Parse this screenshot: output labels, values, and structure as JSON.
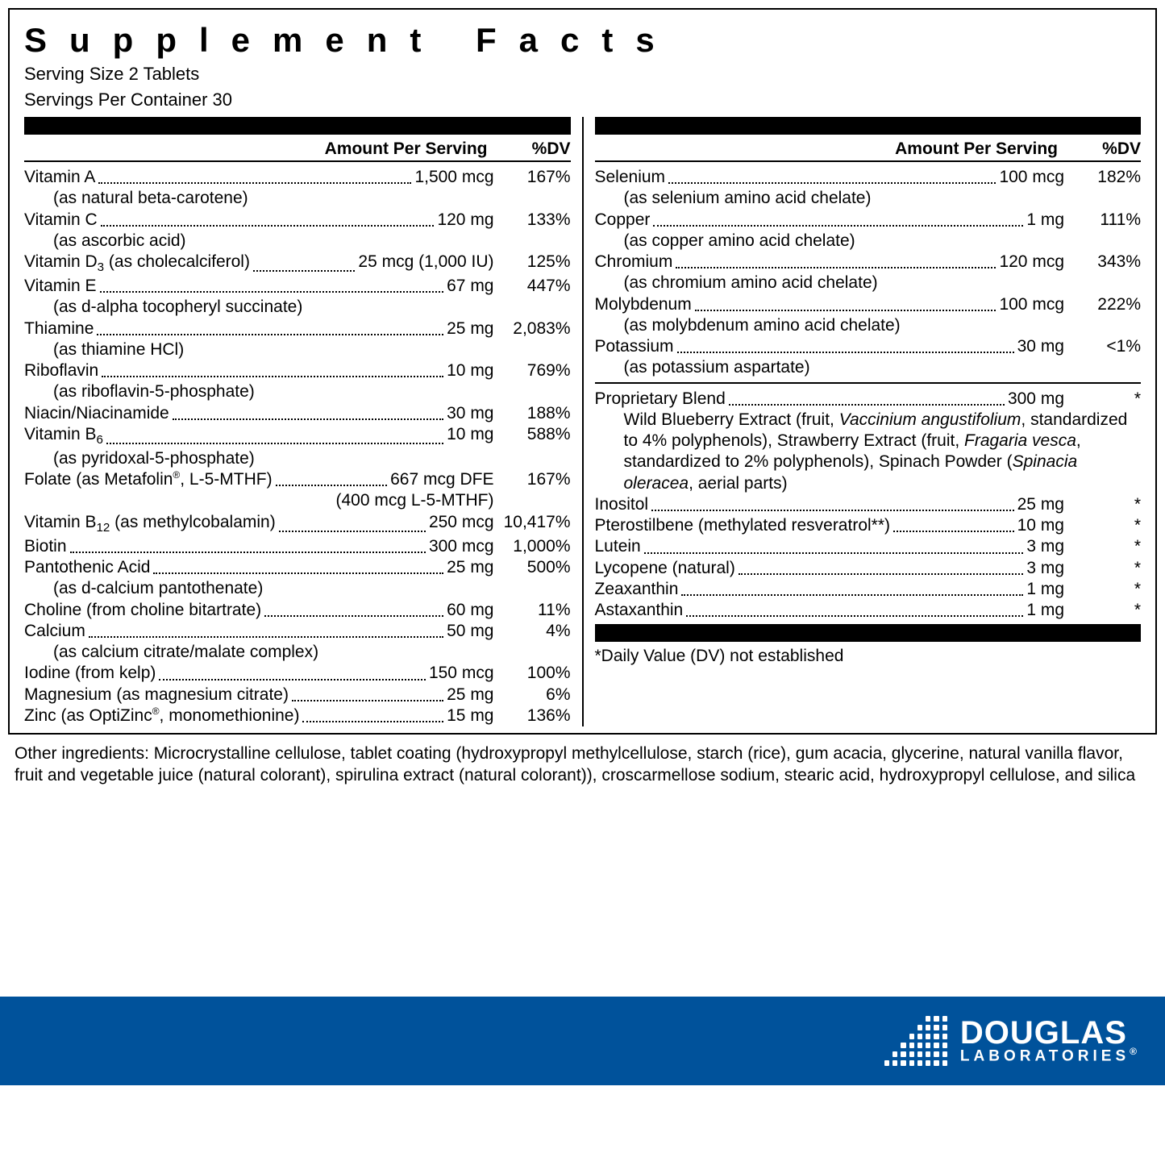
{
  "title": "Supplement Facts",
  "serving_size": "Serving Size 2 Tablets",
  "servings_per_container": "Servings Per Container 30",
  "headers": {
    "amount": "Amount Per Serving",
    "dv": "%DV"
  },
  "left": [
    {
      "name": "Vitamin A",
      "amount": "1,500 mcg",
      "dv": "167%",
      "sub": "(as natural beta-carotene)"
    },
    {
      "name": "Vitamin C",
      "amount": "120 mg",
      "dv": "133%",
      "sub": "(as ascorbic acid)"
    },
    {
      "name_html": "Vitamin D<sub class='chem'>3</sub> (as cholecalciferol)",
      "amount": "25 mcg (1,000 IU)",
      "dv": "125%"
    },
    {
      "name": "Vitamin E",
      "amount": "67 mg",
      "dv": "447%",
      "sub": "(as d-alpha tocopheryl succinate)"
    },
    {
      "name": "Thiamine",
      "amount": "25 mg",
      "dv": "2,083%",
      "sub": "(as thiamine HCl)"
    },
    {
      "name": "Riboflavin",
      "amount": "10 mg",
      "dv": "769%",
      "sub": "(as riboflavin-5-phosphate)"
    },
    {
      "name": "Niacin/Niacinamide",
      "amount": "30 mg",
      "dv": "188%"
    },
    {
      "name_html": "Vitamin B<sub class='chem'>6</sub>",
      "amount": "10 mg",
      "dv": "588%",
      "sub": "(as pyridoxal-5-phosphate)"
    },
    {
      "name_html": "Folate (as Metafolin<span class='reg'>®</span>, L-5-MTHF)",
      "amount": "667 mcg DFE",
      "dv": "167%",
      "sub_right": "(400 mcg L-5-MTHF)"
    },
    {
      "name_html": "Vitamin B<sub class='chem'>12</sub> (as methylcobalamin)",
      "amount": "250 mcg",
      "dv": "10,417%"
    },
    {
      "name": "Biotin",
      "amount": "300 mcg",
      "dv": "1,000%"
    },
    {
      "name": "Pantothenic Acid",
      "amount": "25 mg",
      "dv": "500%",
      "sub": "(as d-calcium pantothenate)"
    },
    {
      "name": "Choline (from choline bitartrate)",
      "amount": "60 mg",
      "dv": "11%"
    },
    {
      "name": "Calcium",
      "amount": "50 mg",
      "dv": "4%",
      "sub": "(as calcium citrate/malate complex)"
    },
    {
      "name": "Iodine (from kelp)",
      "amount": "150 mcg",
      "dv": "100%"
    },
    {
      "name": "Magnesium (as magnesium citrate)",
      "amount": "25 mg",
      "dv": "6%"
    },
    {
      "name_html": "Zinc (as OptiZinc<span class='reg'>®</span>, monomethionine)",
      "amount": "15 mg",
      "dv": "136%"
    }
  ],
  "right_top": [
    {
      "name": "Selenium",
      "amount": "100 mcg",
      "dv": "182%",
      "sub": "(as selenium amino acid chelate)"
    },
    {
      "name": "Copper",
      "amount": "1 mg",
      "dv": "111%",
      "sub": "(as copper amino acid chelate)"
    },
    {
      "name": "Chromium",
      "amount": "120 mcg",
      "dv": "343%",
      "sub": "(as chromium amino acid chelate)"
    },
    {
      "name": "Molybdenum",
      "amount": "100 mcg",
      "dv": "222%",
      "sub": "(as molybdenum amino acid chelate)"
    },
    {
      "name": "Potassium",
      "amount": "30 mg",
      "dv": "<1%",
      "sub": "(as potassium aspartate)"
    }
  ],
  "right_bottom": [
    {
      "name": "Proprietary Blend",
      "amount": "300 mg",
      "dv": "*",
      "blend_html": "Wild Blueberry Extract (fruit, <span class='ital'>Vaccinium angustifolium</span>, standardized to 4% polyphenols), Strawberry Extract (fruit, <span class='ital'>Fragaria vesca</span>, standardized to 2% polyphenols), Spinach Powder (<span class='ital'>Spinacia oleracea</span>, aerial parts)"
    },
    {
      "name": "Inositol",
      "amount": "25 mg",
      "dv": "*"
    },
    {
      "name": "Pterostilbene (methylated resveratrol**)",
      "amount": "10 mg",
      "dv": "*"
    },
    {
      "name": "Lutein",
      "amount": "3 mg",
      "dv": "*"
    },
    {
      "name": "Lycopene (natural)",
      "amount": "3 mg",
      "dv": "*"
    },
    {
      "name": "Zeaxanthin",
      "amount": "1 mg",
      "dv": "*"
    },
    {
      "name": "Astaxanthin",
      "amount": "1 mg",
      "dv": "*"
    }
  ],
  "footnote": "*Daily Value (DV) not established",
  "other_ingredients": "Other ingredients: Microcrystalline cellulose, tablet coating (hydroxypropyl methylcellulose, starch (rice), gum acacia, glycerine, natural vanilla flavor, fruit and vegetable juice (natural colorant), spirulina extract (natural colorant)), croscarmellose sodium, stearic acid, hydroxypropyl cellulose, and silica",
  "brand": {
    "line1": "DOUGLAS",
    "line2": "LABORATORIES",
    "bg": "#00529b"
  },
  "style": {
    "font_size_body": 21,
    "title_letter_spacing": 28,
    "thickbar_height": 22
  }
}
